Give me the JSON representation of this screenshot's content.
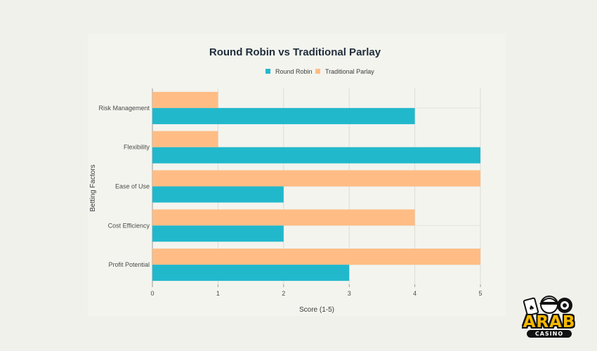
{
  "chart_data": {
    "type": "bar",
    "orientation": "horizontal",
    "title": "Round Robin vs Traditional Parlay",
    "xlabel": "Score (1-5)",
    "ylabel": "Betting Factors",
    "xlim": [
      0,
      5
    ],
    "xticks": [
      "0",
      "1",
      "2",
      "3",
      "4",
      "5"
    ],
    "categories": [
      "Risk Management",
      "Flexibility",
      "Ease of Use",
      "Cost Efficiency",
      "Profit Potential"
    ],
    "series": [
      {
        "name": "Round Robin",
        "values": [
          4,
          5,
          2,
          2,
          3
        ],
        "color": "#22b8cc"
      },
      {
        "name": "Traditional Parlay",
        "values": [
          1,
          1,
          5,
          4,
          5
        ],
        "color": "#ffbd85"
      }
    ],
    "grid": true,
    "legend": "top-center"
  },
  "logo": {
    "text": "ARAB",
    "subtext": "CASINO"
  }
}
